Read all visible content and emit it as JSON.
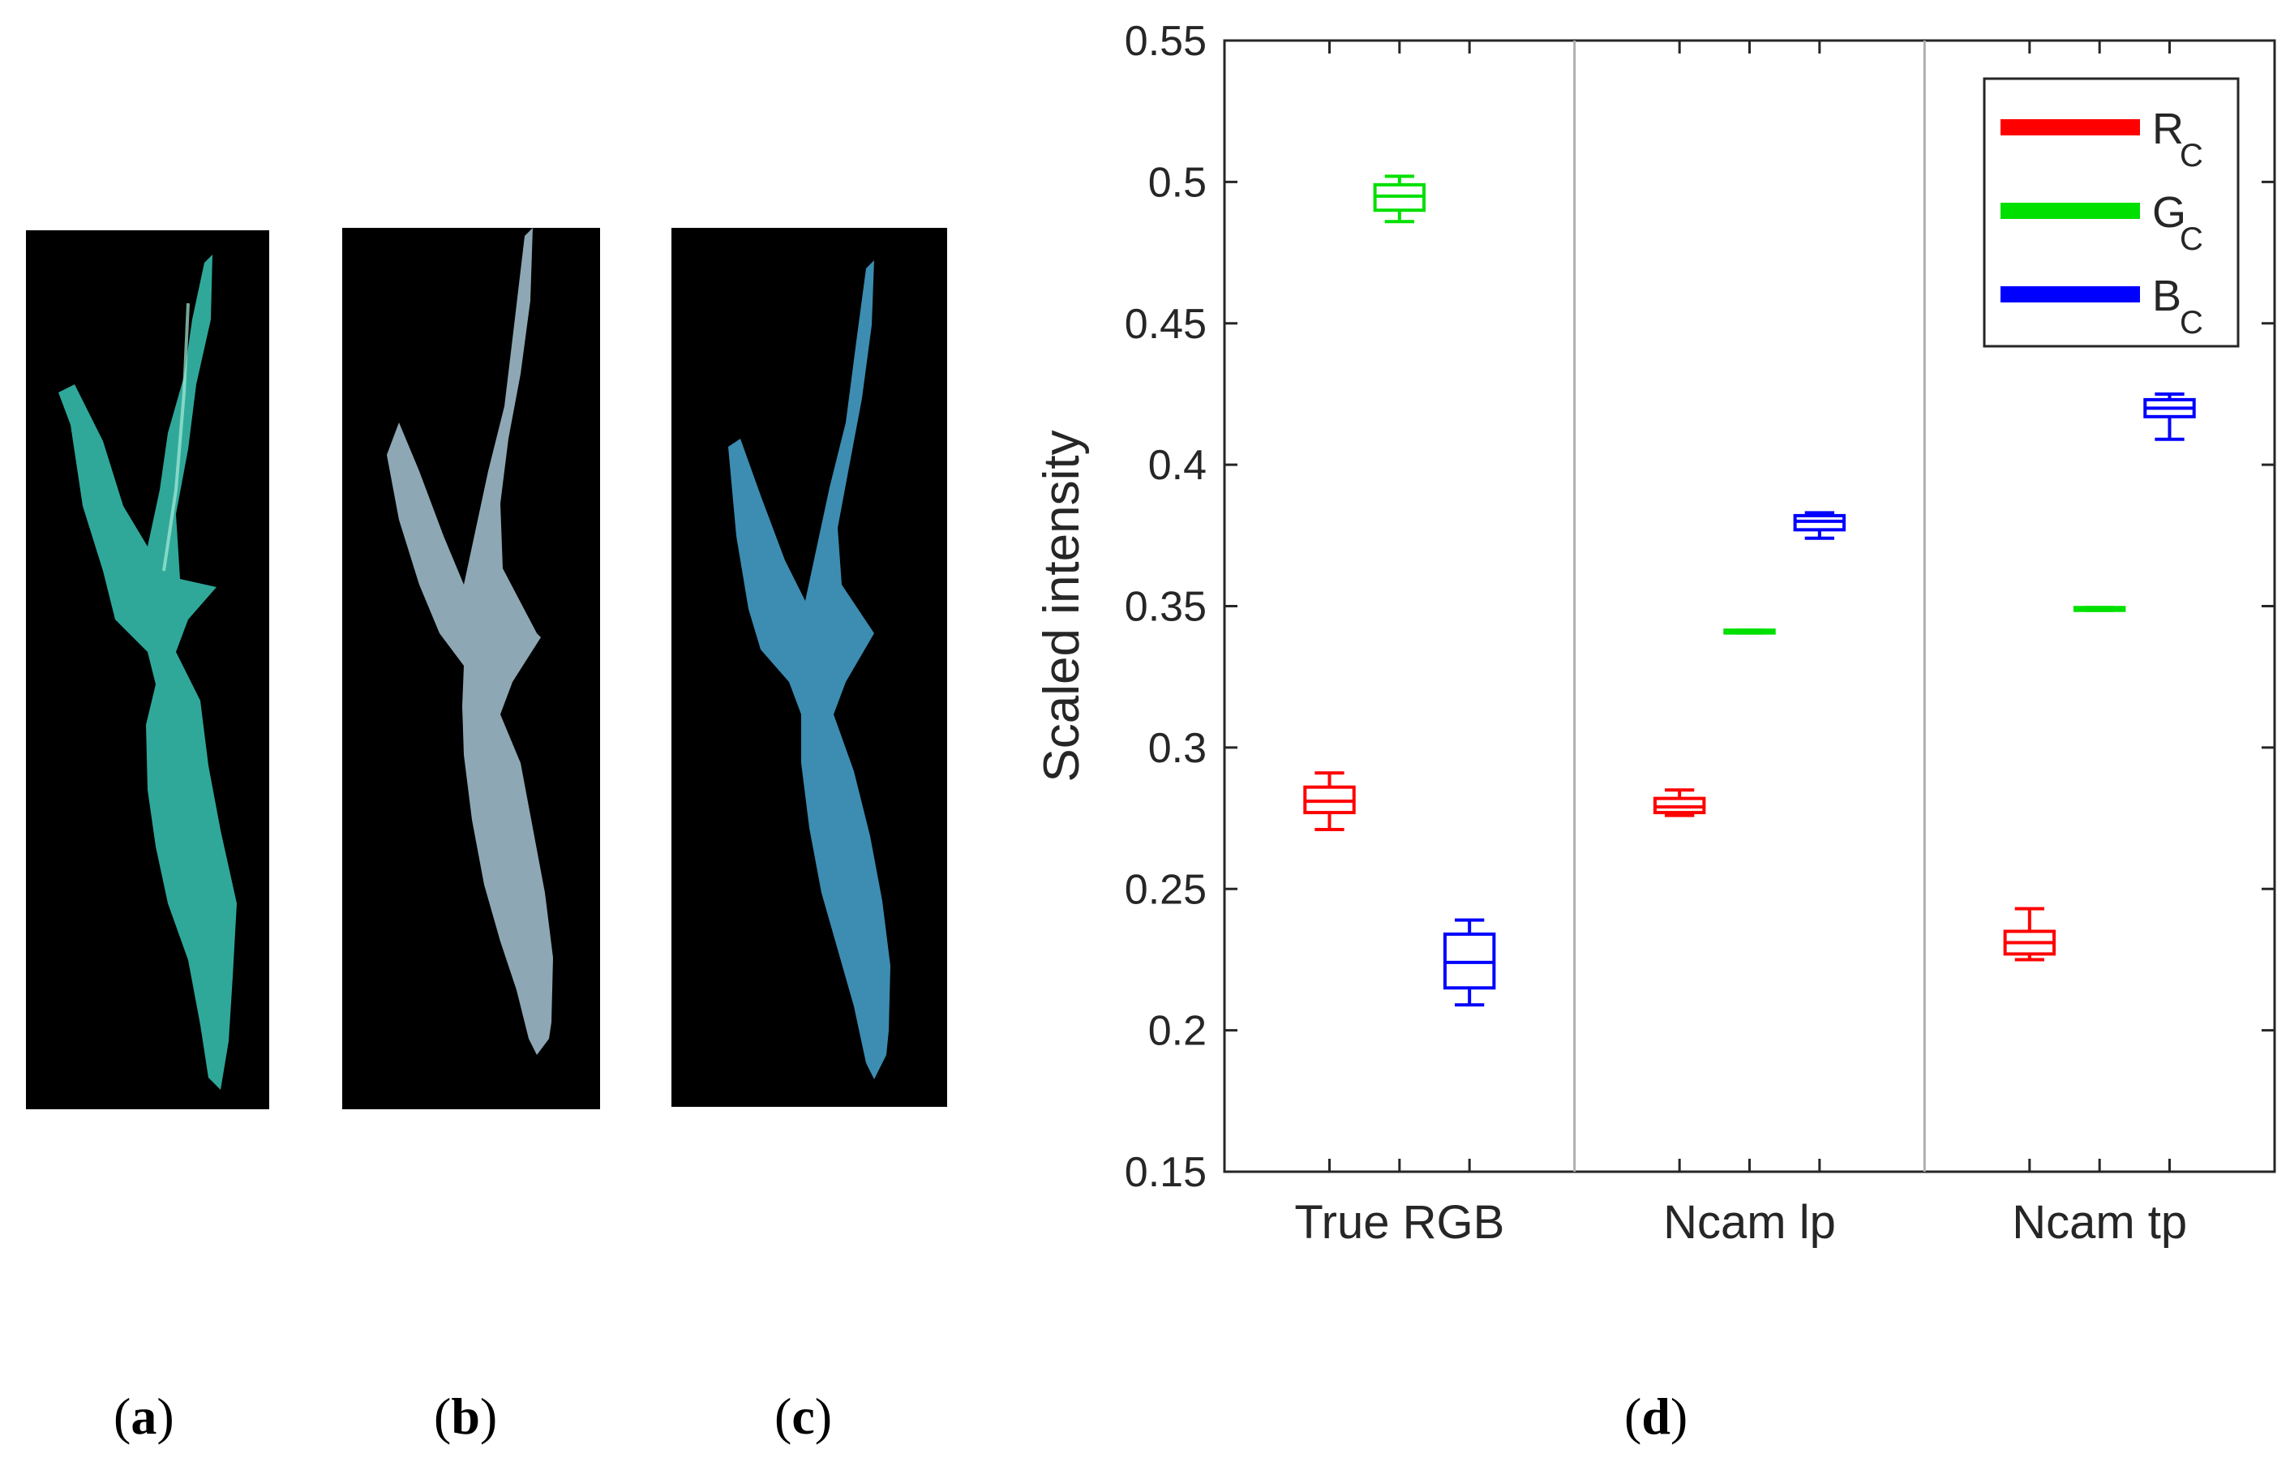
{
  "panels": {
    "a": {
      "label": "a"
    },
    "b": {
      "label": "b"
    },
    "c": {
      "label": "c"
    },
    "d": {
      "label": "d"
    }
  },
  "colors": {
    "leaf_a": "#2fa89a",
    "leaf_b": "#8fa8b6",
    "leaf_c": "#3d8fb3",
    "background": "#000000"
  },
  "chart_data": {
    "type": "box",
    "ylabel": "Scaled intensity",
    "xlabel": "",
    "ylim": [
      0.15,
      0.55
    ],
    "yticks": [
      "0.15",
      "0.2",
      "0.25",
      "0.3",
      "0.35",
      "0.4",
      "0.45",
      "0.5",
      "0.55"
    ],
    "ytick_values": [
      0.15,
      0.2,
      0.25,
      0.3,
      0.35,
      0.4,
      0.45,
      0.5,
      0.55
    ],
    "categories": [
      "True RGB",
      "Ncam lp",
      "Ncam tp"
    ],
    "grid": false,
    "legend_position": "top-right",
    "series": [
      {
        "name": "R",
        "subscript": "C",
        "color": "#ff0000",
        "boxes": [
          {
            "min": 0.271,
            "q1": 0.277,
            "median": 0.281,
            "q3": 0.286,
            "max": 0.291
          },
          {
            "min": 0.276,
            "q1": 0.277,
            "median": 0.279,
            "q3": 0.282,
            "max": 0.285
          },
          {
            "min": 0.225,
            "q1": 0.227,
            "median": 0.231,
            "q3": 0.235,
            "max": 0.243
          }
        ]
      },
      {
        "name": "G",
        "subscript": "C",
        "color": "#00e000",
        "boxes": [
          {
            "min": 0.486,
            "q1": 0.49,
            "median": 0.495,
            "q3": 0.499,
            "max": 0.502
          },
          {
            "min": 0.3405,
            "q1": 0.3405,
            "median": 0.341,
            "q3": 0.3415,
            "max": 0.3415
          },
          {
            "min": 0.3485,
            "q1": 0.3485,
            "median": 0.349,
            "q3": 0.3495,
            "max": 0.3495
          }
        ]
      },
      {
        "name": "B",
        "subscript": "C",
        "color": "#0000ff",
        "boxes": [
          {
            "min": 0.209,
            "q1": 0.215,
            "median": 0.224,
            "q3": 0.234,
            "max": 0.239
          },
          {
            "min": 0.374,
            "q1": 0.377,
            "median": 0.38,
            "q3": 0.382,
            "max": 0.383
          },
          {
            "min": 0.409,
            "q1": 0.417,
            "median": 0.42,
            "q3": 0.423,
            "max": 0.425
          }
        ]
      }
    ]
  }
}
